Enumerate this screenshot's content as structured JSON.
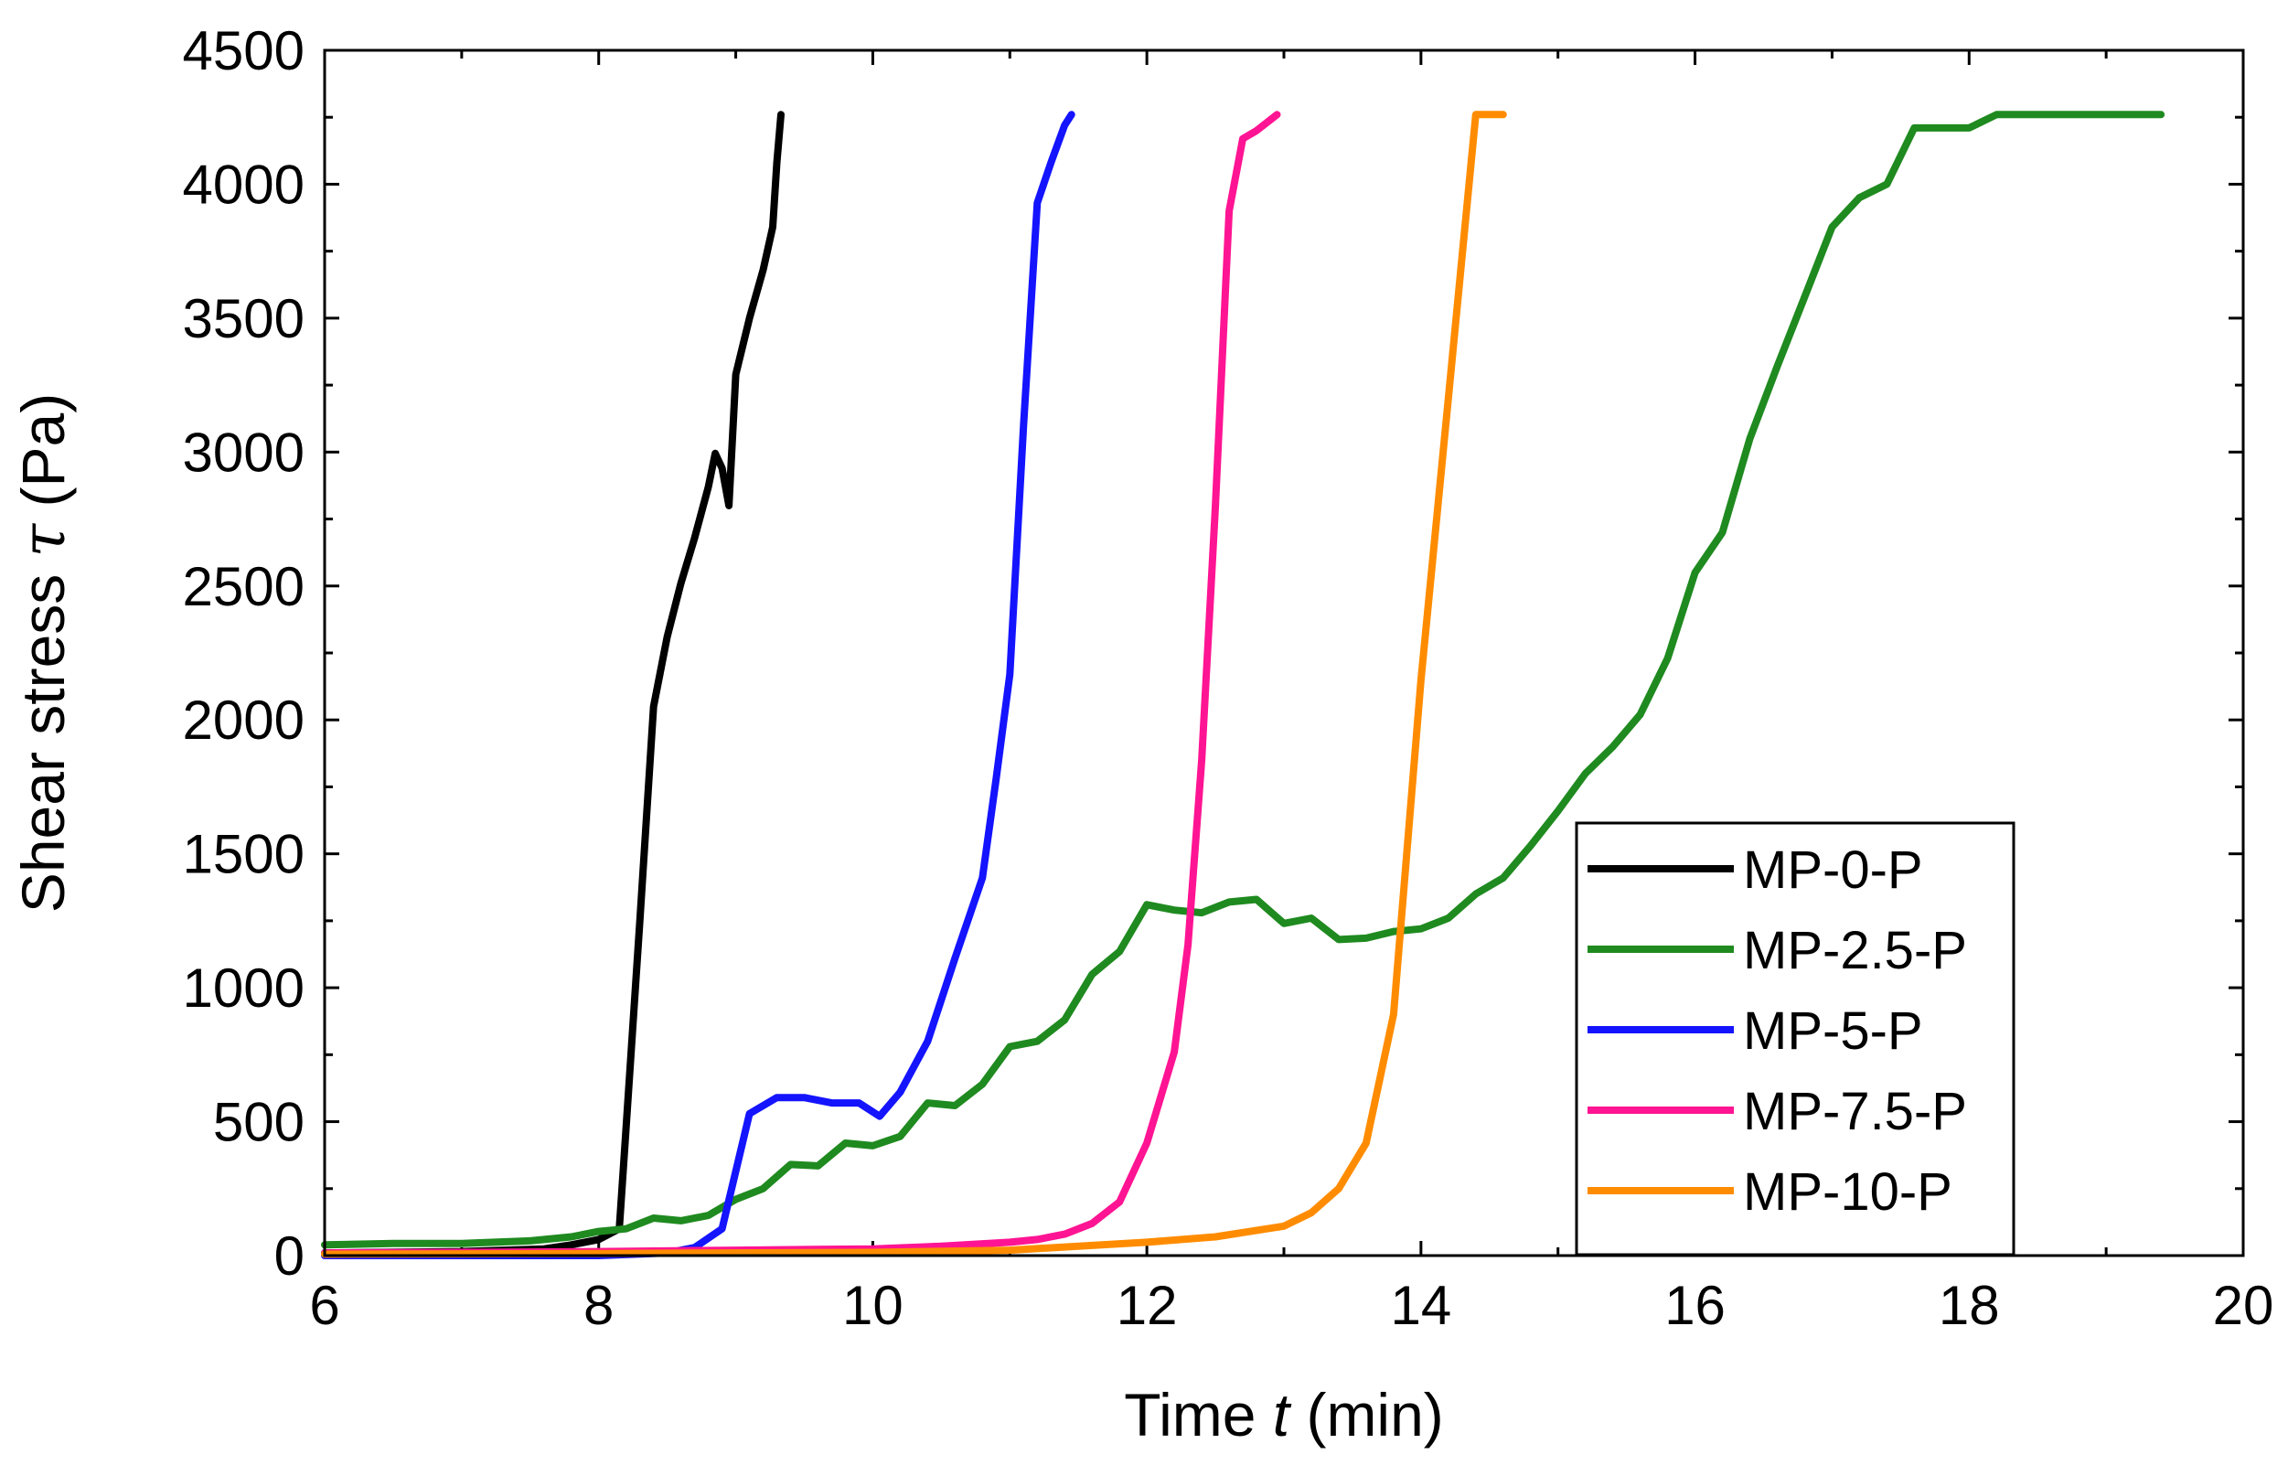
{
  "chart_data": {
    "type": "line",
    "xlabel_prefix": "Time ",
    "xlabel_var": "t",
    "xlabel_unit": " (min)",
    "ylabel_prefix": "Shear stress ",
    "ylabel_var": "τ",
    "ylabel_unit": " (Pa)",
    "xlim": [
      6,
      20
    ],
    "ylim": [
      0,
      4500
    ],
    "xticks": [
      6,
      8,
      10,
      12,
      14,
      16,
      18,
      20
    ],
    "yticks": [
      0,
      500,
      1000,
      1500,
      2000,
      2500,
      3000,
      3500,
      4000,
      4500
    ],
    "legend_position": "right-center",
    "series": [
      {
        "name": "MP-0-P",
        "color": "#000000",
        "x": [
          6.0,
          7.0,
          7.6,
          7.8,
          8.0,
          8.15,
          8.2,
          8.3,
          8.4,
          8.5,
          8.6,
          8.7,
          8.8,
          8.85,
          8.9,
          8.95,
          9.0,
          9.1,
          9.2,
          9.27,
          9.3,
          9.33
        ],
        "y": [
          10,
          15,
          25,
          40,
          60,
          100,
          480,
          1250,
          2050,
          2310,
          2510,
          2680,
          2870,
          2995,
          2940,
          2800,
          3290,
          3500,
          3680,
          3840,
          4080,
          4260
        ]
      },
      {
        "name": "MP-2.5-P",
        "color": "#1f8a1f",
        "x": [
          6.0,
          6.5,
          7.0,
          7.5,
          7.8,
          8.0,
          8.2,
          8.4,
          8.6,
          8.8,
          9.0,
          9.2,
          9.4,
          9.6,
          9.8,
          10.0,
          10.2,
          10.4,
          10.6,
          10.8,
          11.0,
          11.2,
          11.4,
          11.6,
          11.8,
          12.0,
          12.2,
          12.4,
          12.6,
          12.8,
          13.0,
          13.2,
          13.4,
          13.6,
          13.8,
          14.0,
          14.2,
          14.4,
          14.6,
          14.8,
          15.0,
          15.2,
          15.4,
          15.6,
          15.8,
          16.0,
          16.2,
          16.4,
          16.6,
          16.8,
          17.0,
          17.2,
          17.4,
          17.6,
          17.8,
          18.0,
          18.2,
          18.4,
          18.6,
          18.8,
          19.0,
          19.2,
          19.4
        ],
        "y": [
          40,
          45,
          45,
          55,
          70,
          90,
          100,
          140,
          130,
          150,
          210,
          250,
          340,
          335,
          420,
          410,
          445,
          570,
          560,
          640,
          780,
          800,
          880,
          1050,
          1135,
          1310,
          1290,
          1280,
          1320,
          1330,
          1240,
          1260,
          1180,
          1185,
          1210,
          1220,
          1260,
          1350,
          1410,
          1530,
          1660,
          1800,
          1900,
          2020,
          2230,
          2550,
          2700,
          3050,
          3320,
          3580,
          3840,
          3950,
          4000,
          4210,
          4210,
          4210,
          4260,
          4260,
          4260,
          4260,
          4260,
          4260,
          4260
        ]
      },
      {
        "name": "MP-5-P",
        "color": "#1414ff",
        "x": [
          6.0,
          7.0,
          8.0,
          8.5,
          8.7,
          8.9,
          9.1,
          9.3,
          9.5,
          9.7,
          9.9,
          10.05,
          10.2,
          10.4,
          10.6,
          10.8,
          10.9,
          11.0,
          11.1,
          11.2,
          11.3,
          11.4,
          11.45
        ],
        "y": [
          0,
          0,
          0,
          10,
          30,
          100,
          530,
          590,
          590,
          570,
          570,
          520,
          610,
          800,
          1110,
          1410,
          1780,
          2170,
          3100,
          3930,
          4080,
          4220,
          4260
        ]
      },
      {
        "name": "MP-7.5-P",
        "color": "#ff1493",
        "x": [
          6.0,
          7.0,
          8.0,
          9.0,
          10.0,
          10.5,
          11.0,
          11.2,
          11.4,
          11.6,
          11.8,
          12.0,
          12.2,
          12.3,
          12.4,
          12.5,
          12.6,
          12.7,
          12.8,
          12.9,
          12.95
        ],
        "y": [
          10,
          12,
          15,
          20,
          25,
          35,
          50,
          60,
          80,
          120,
          200,
          420,
          760,
          1160,
          1850,
          2800,
          3900,
          4170,
          4200,
          4240,
          4260
        ]
      },
      {
        "name": "MP-10-P",
        "color": "#ff8c00",
        "x": [
          6.0,
          8.0,
          10.0,
          11.0,
          12.0,
          12.5,
          13.0,
          13.2,
          13.4,
          13.6,
          13.8,
          14.0,
          14.2,
          14.4,
          14.5,
          14.6
        ],
        "y": [
          5,
          8,
          12,
          20,
          50,
          70,
          110,
          160,
          250,
          420,
          900,
          2150,
          3200,
          4260,
          4260,
          4260
        ]
      }
    ]
  }
}
